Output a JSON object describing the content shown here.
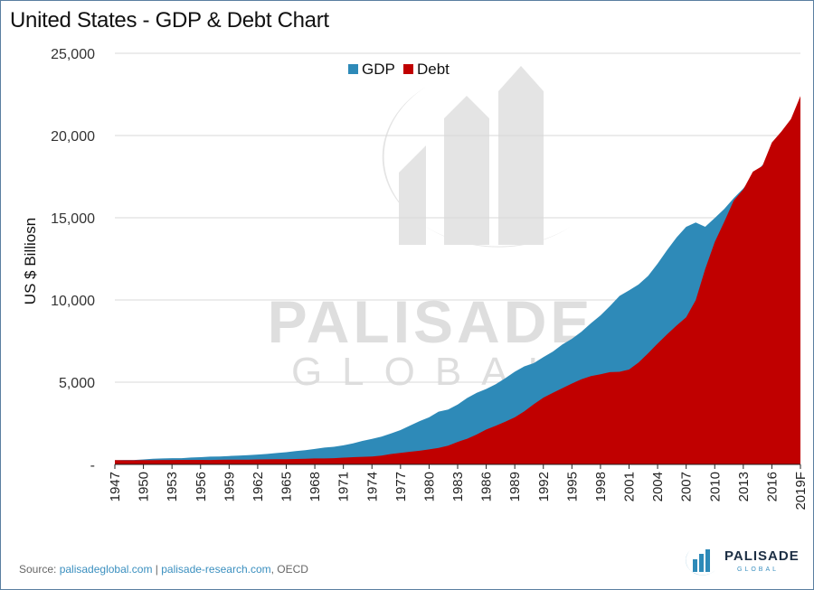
{
  "title": "United States - GDP & Debt Chart",
  "footer": {
    "prefix": "Source: ",
    "link1": "palisadeglobal.com",
    "sep": " | ",
    "link2": "palisade-research.com",
    "suffix": ", OECD"
  },
  "watermark": {
    "line1": "PALISADE",
    "line2": "GLOBAL"
  },
  "logo": {
    "name": "PALISADE",
    "sub": "GLOBAL",
    "icon": "palisade-logo-icon"
  },
  "colors": {
    "gdp": "#2e8ab8",
    "debt": "#c00000",
    "grid": "#d9d9d9",
    "axis": "#222222"
  },
  "chart_data": {
    "type": "area",
    "ylabel": "US $ Billiosn",
    "ylim": [
      0,
      25000
    ],
    "y_ticks": [
      {
        "value": 0,
        "label": "-"
      },
      {
        "value": 5000,
        "label": "5,000"
      },
      {
        "value": 10000,
        "label": "10,000"
      },
      {
        "value": 15000,
        "label": "15,000"
      },
      {
        "value": 20000,
        "label": "20,000"
      },
      {
        "value": 25000,
        "label": "25,000"
      }
    ],
    "x_ticks": [
      "1947",
      "1950",
      "1953",
      "1956",
      "1959",
      "1962",
      "1965",
      "1968",
      "1971",
      "1974",
      "1977",
      "1980",
      "1983",
      "1986",
      "1989",
      "1992",
      "1995",
      "1998",
      "2001",
      "2004",
      "2007",
      "2010",
      "2013",
      "2016",
      "2019F"
    ],
    "grid": true,
    "legend_position": "top-center",
    "x": [
      1947,
      1948,
      1949,
      1950,
      1951,
      1952,
      1953,
      1954,
      1955,
      1956,
      1957,
      1958,
      1959,
      1960,
      1961,
      1962,
      1963,
      1964,
      1965,
      1966,
      1967,
      1968,
      1969,
      1970,
      1971,
      1972,
      1973,
      1974,
      1975,
      1976,
      1977,
      1978,
      1979,
      1980,
      1981,
      1982,
      1983,
      1984,
      1985,
      1986,
      1987,
      1988,
      1989,
      1990,
      1991,
      1992,
      1993,
      1994,
      1995,
      1996,
      1997,
      1998,
      1999,
      2000,
      2001,
      2002,
      2003,
      2004,
      2005,
      2006,
      2007,
      2008,
      2009,
      2010,
      2011,
      2012,
      2013,
      2014,
      2015,
      2016,
      2017,
      2018,
      2019
    ],
    "series": [
      {
        "name": "GDP",
        "values": [
          250,
          270,
          270,
          300,
          340,
          360,
          380,
          380,
          420,
          440,
          470,
          480,
          510,
          540,
          560,
          600,
          640,
          690,
          740,
          810,
          860,
          940,
          1020,
          1070,
          1160,
          1280,
          1430,
          1550,
          1690,
          1880,
          2090,
          2360,
          2630,
          2860,
          3210,
          3340,
          3640,
          4040,
          4350,
          4590,
          4880,
          5240,
          5640,
          5960,
          6160,
          6520,
          6860,
          7290,
          7640,
          8070,
          8580,
          9060,
          9630,
          10250,
          10580,
          10940,
          11460,
          12210,
          13040,
          13810,
          14450,
          14710,
          14450,
          14990,
          15540,
          16200,
          16780,
          17500,
          18200,
          18700,
          19500,
          20500,
          21400
        ]
      },
      {
        "name": "Debt",
        "values": [
          260,
          250,
          250,
          260,
          260,
          270,
          270,
          275,
          275,
          275,
          270,
          280,
          290,
          290,
          290,
          300,
          310,
          315,
          320,
          330,
          340,
          360,
          360,
          380,
          410,
          440,
          460,
          480,
          540,
          630,
          700,
          770,
          830,
          910,
          1000,
          1140,
          1370,
          1560,
          1820,
          2120,
          2350,
          2600,
          2860,
          3230,
          3660,
          4060,
          4350,
          4640,
          4920,
          5180,
          5370,
          5480,
          5610,
          5630,
          5770,
          6200,
          6760,
          7350,
          7910,
          8450,
          8950,
          9990,
          11880,
          13530,
          14760,
          16050,
          16720,
          17800,
          18150,
          19570,
          20240,
          21000,
          22400
        ]
      }
    ]
  }
}
